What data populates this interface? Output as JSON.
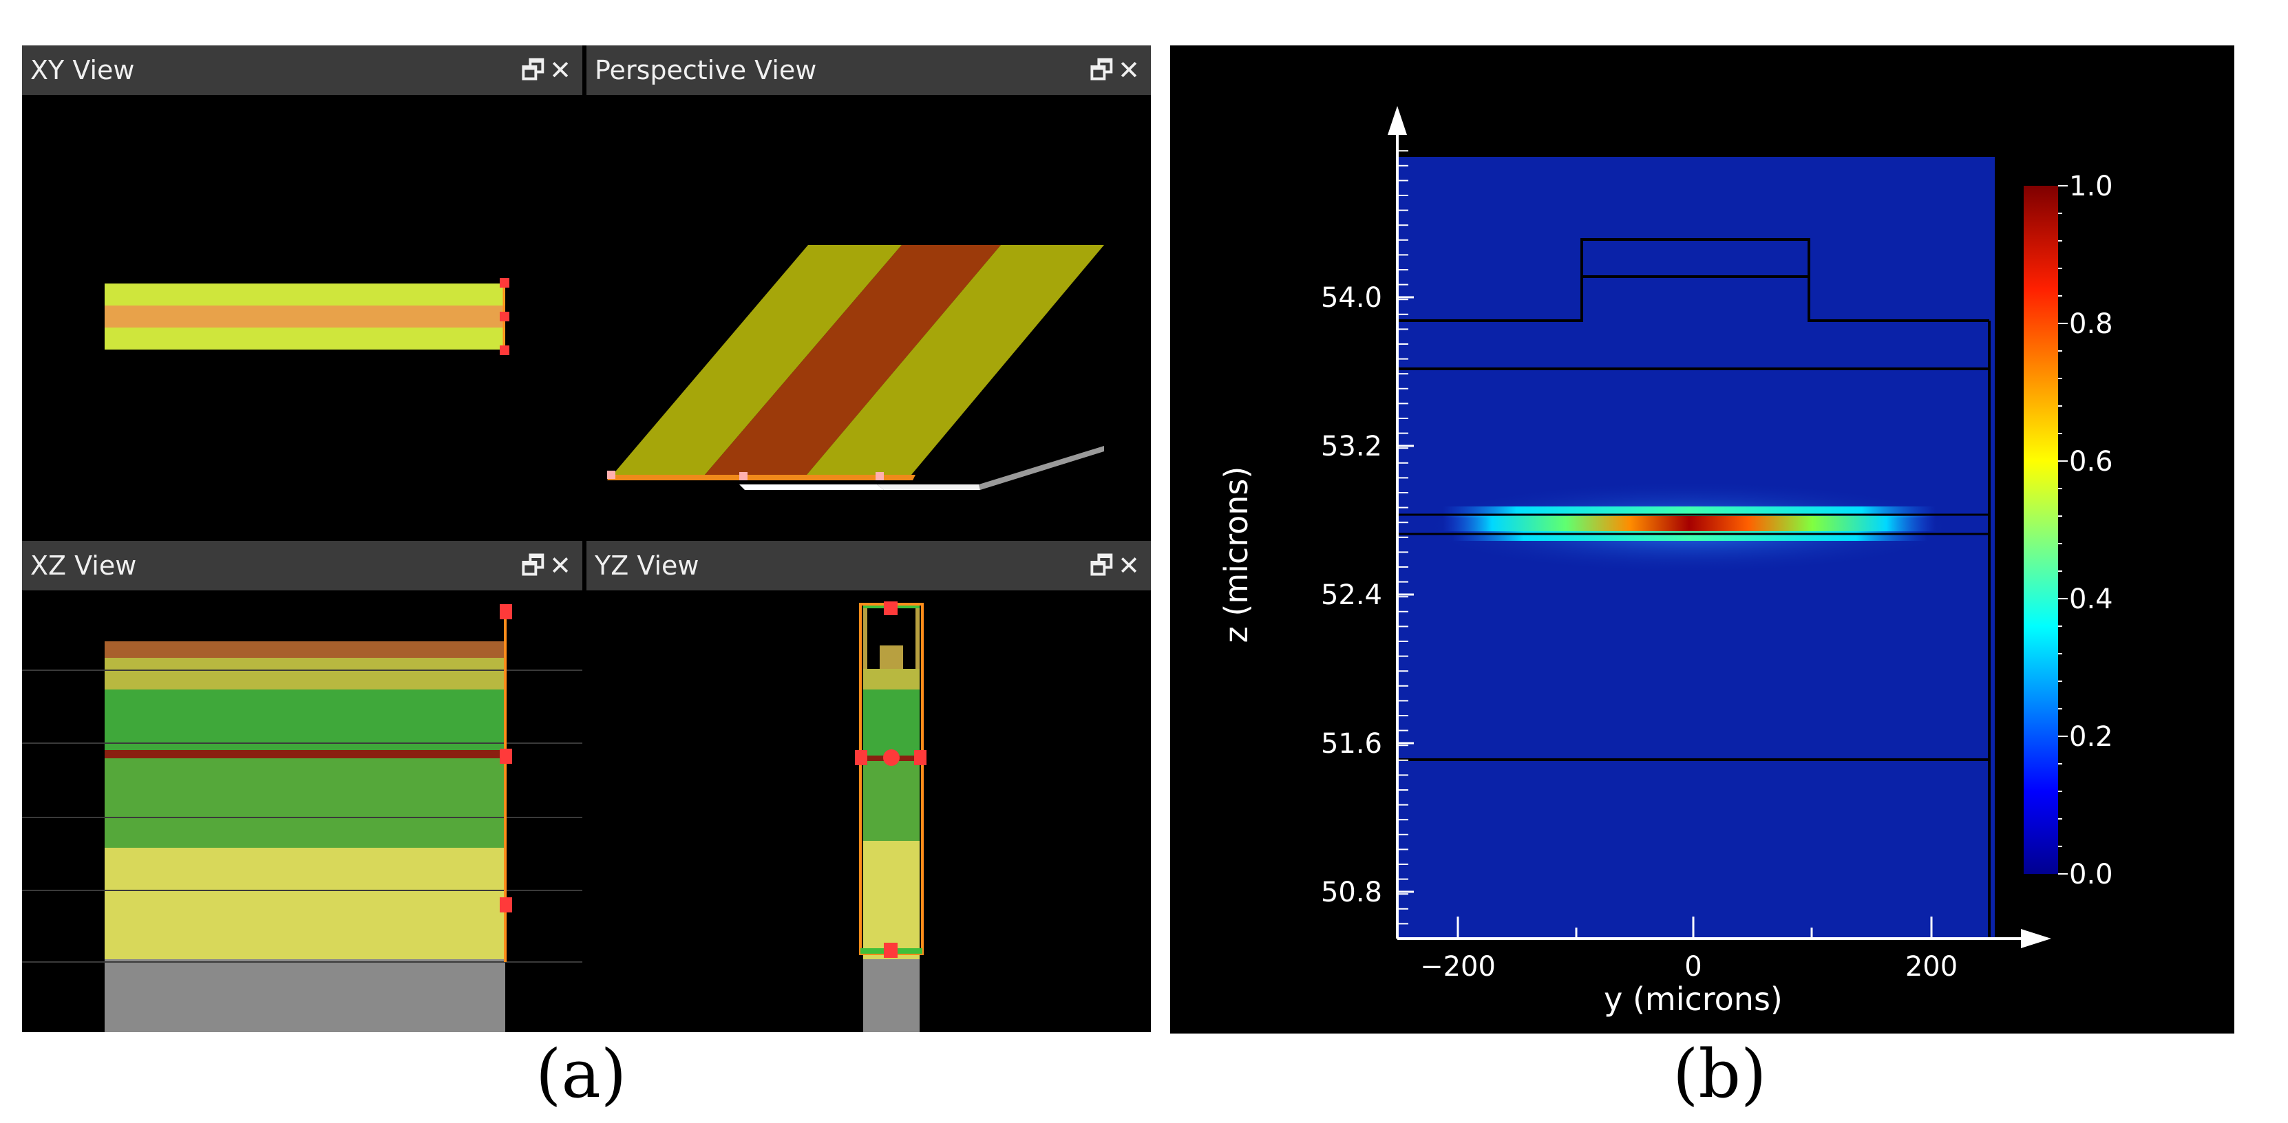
{
  "panel_a": {
    "views": [
      {
        "title": "XY View",
        "controls": "🗗✕"
      },
      {
        "title": "Perspective View",
        "controls": "🗗✕"
      },
      {
        "title": "XZ View",
        "controls": "🗗✕"
      },
      {
        "title": "YZ View",
        "controls": "🗗✕"
      }
    ],
    "caption": "(a)"
  },
  "panel_b": {
    "caption": "(b)",
    "xlabel": "y (microns)",
    "ylabel": "z (microns)",
    "x_ticks": [
      "−200",
      "0",
      "200"
    ],
    "y_ticks": [
      "54.0",
      "53.2",
      "52.4",
      "51.6",
      "50.8"
    ],
    "colorbar_ticks": [
      "1.0",
      "0.8",
      "0.6",
      "0.4",
      "0.2",
      "0.0"
    ],
    "colors": {
      "field_background": "#0a22a8",
      "peak": "#a50000"
    }
  }
}
